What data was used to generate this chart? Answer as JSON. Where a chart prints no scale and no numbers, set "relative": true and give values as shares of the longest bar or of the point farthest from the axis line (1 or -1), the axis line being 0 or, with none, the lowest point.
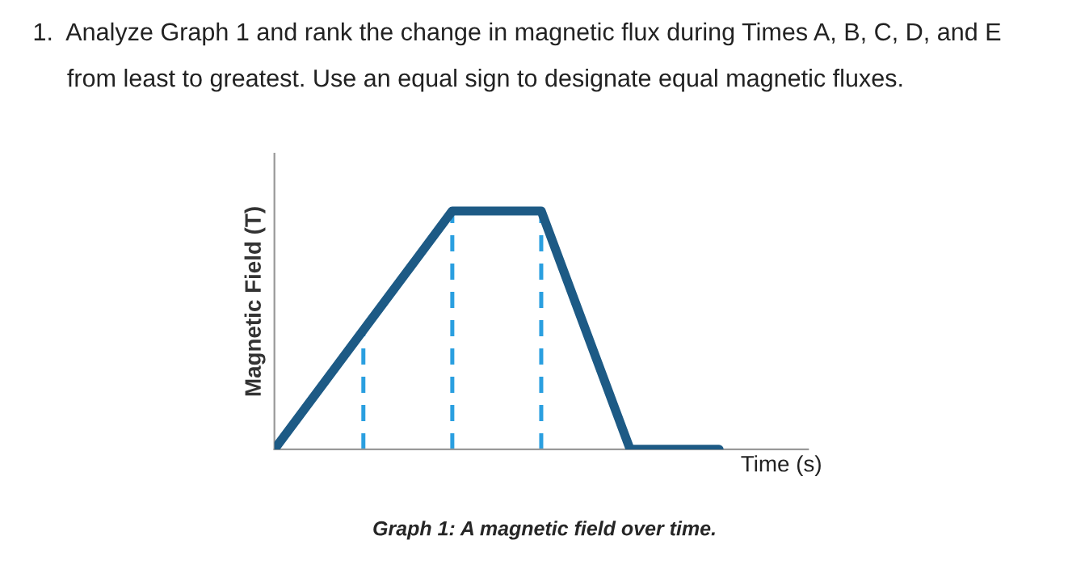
{
  "chart_data": {
    "type": "line",
    "title": "1.  Analyze Graph 1 and rank the change in magnetic flux during Times A, B, C, D, and E\n     from least to greatest. Use an equal sign to designate equal magnetic fluxes.",
    "xlabel": "Time (s)",
    "ylabel": "Magnetic Field (T)",
    "annotations": [
      "Graph 1: A magnetic field over time."
    ],
    "categories": [
      null,
      null,
      null,
      null,
      null,
      null
    ],
    "relative": true,
    "series": [
      {
        "color": "#1d5a85",
        "values": [
          0,
          0.5,
          1,
          1,
          0,
          0
        ]
      }
    ],
    "legend": false,
    "marker": "none",
    "line_style": "solid"
  }
}
